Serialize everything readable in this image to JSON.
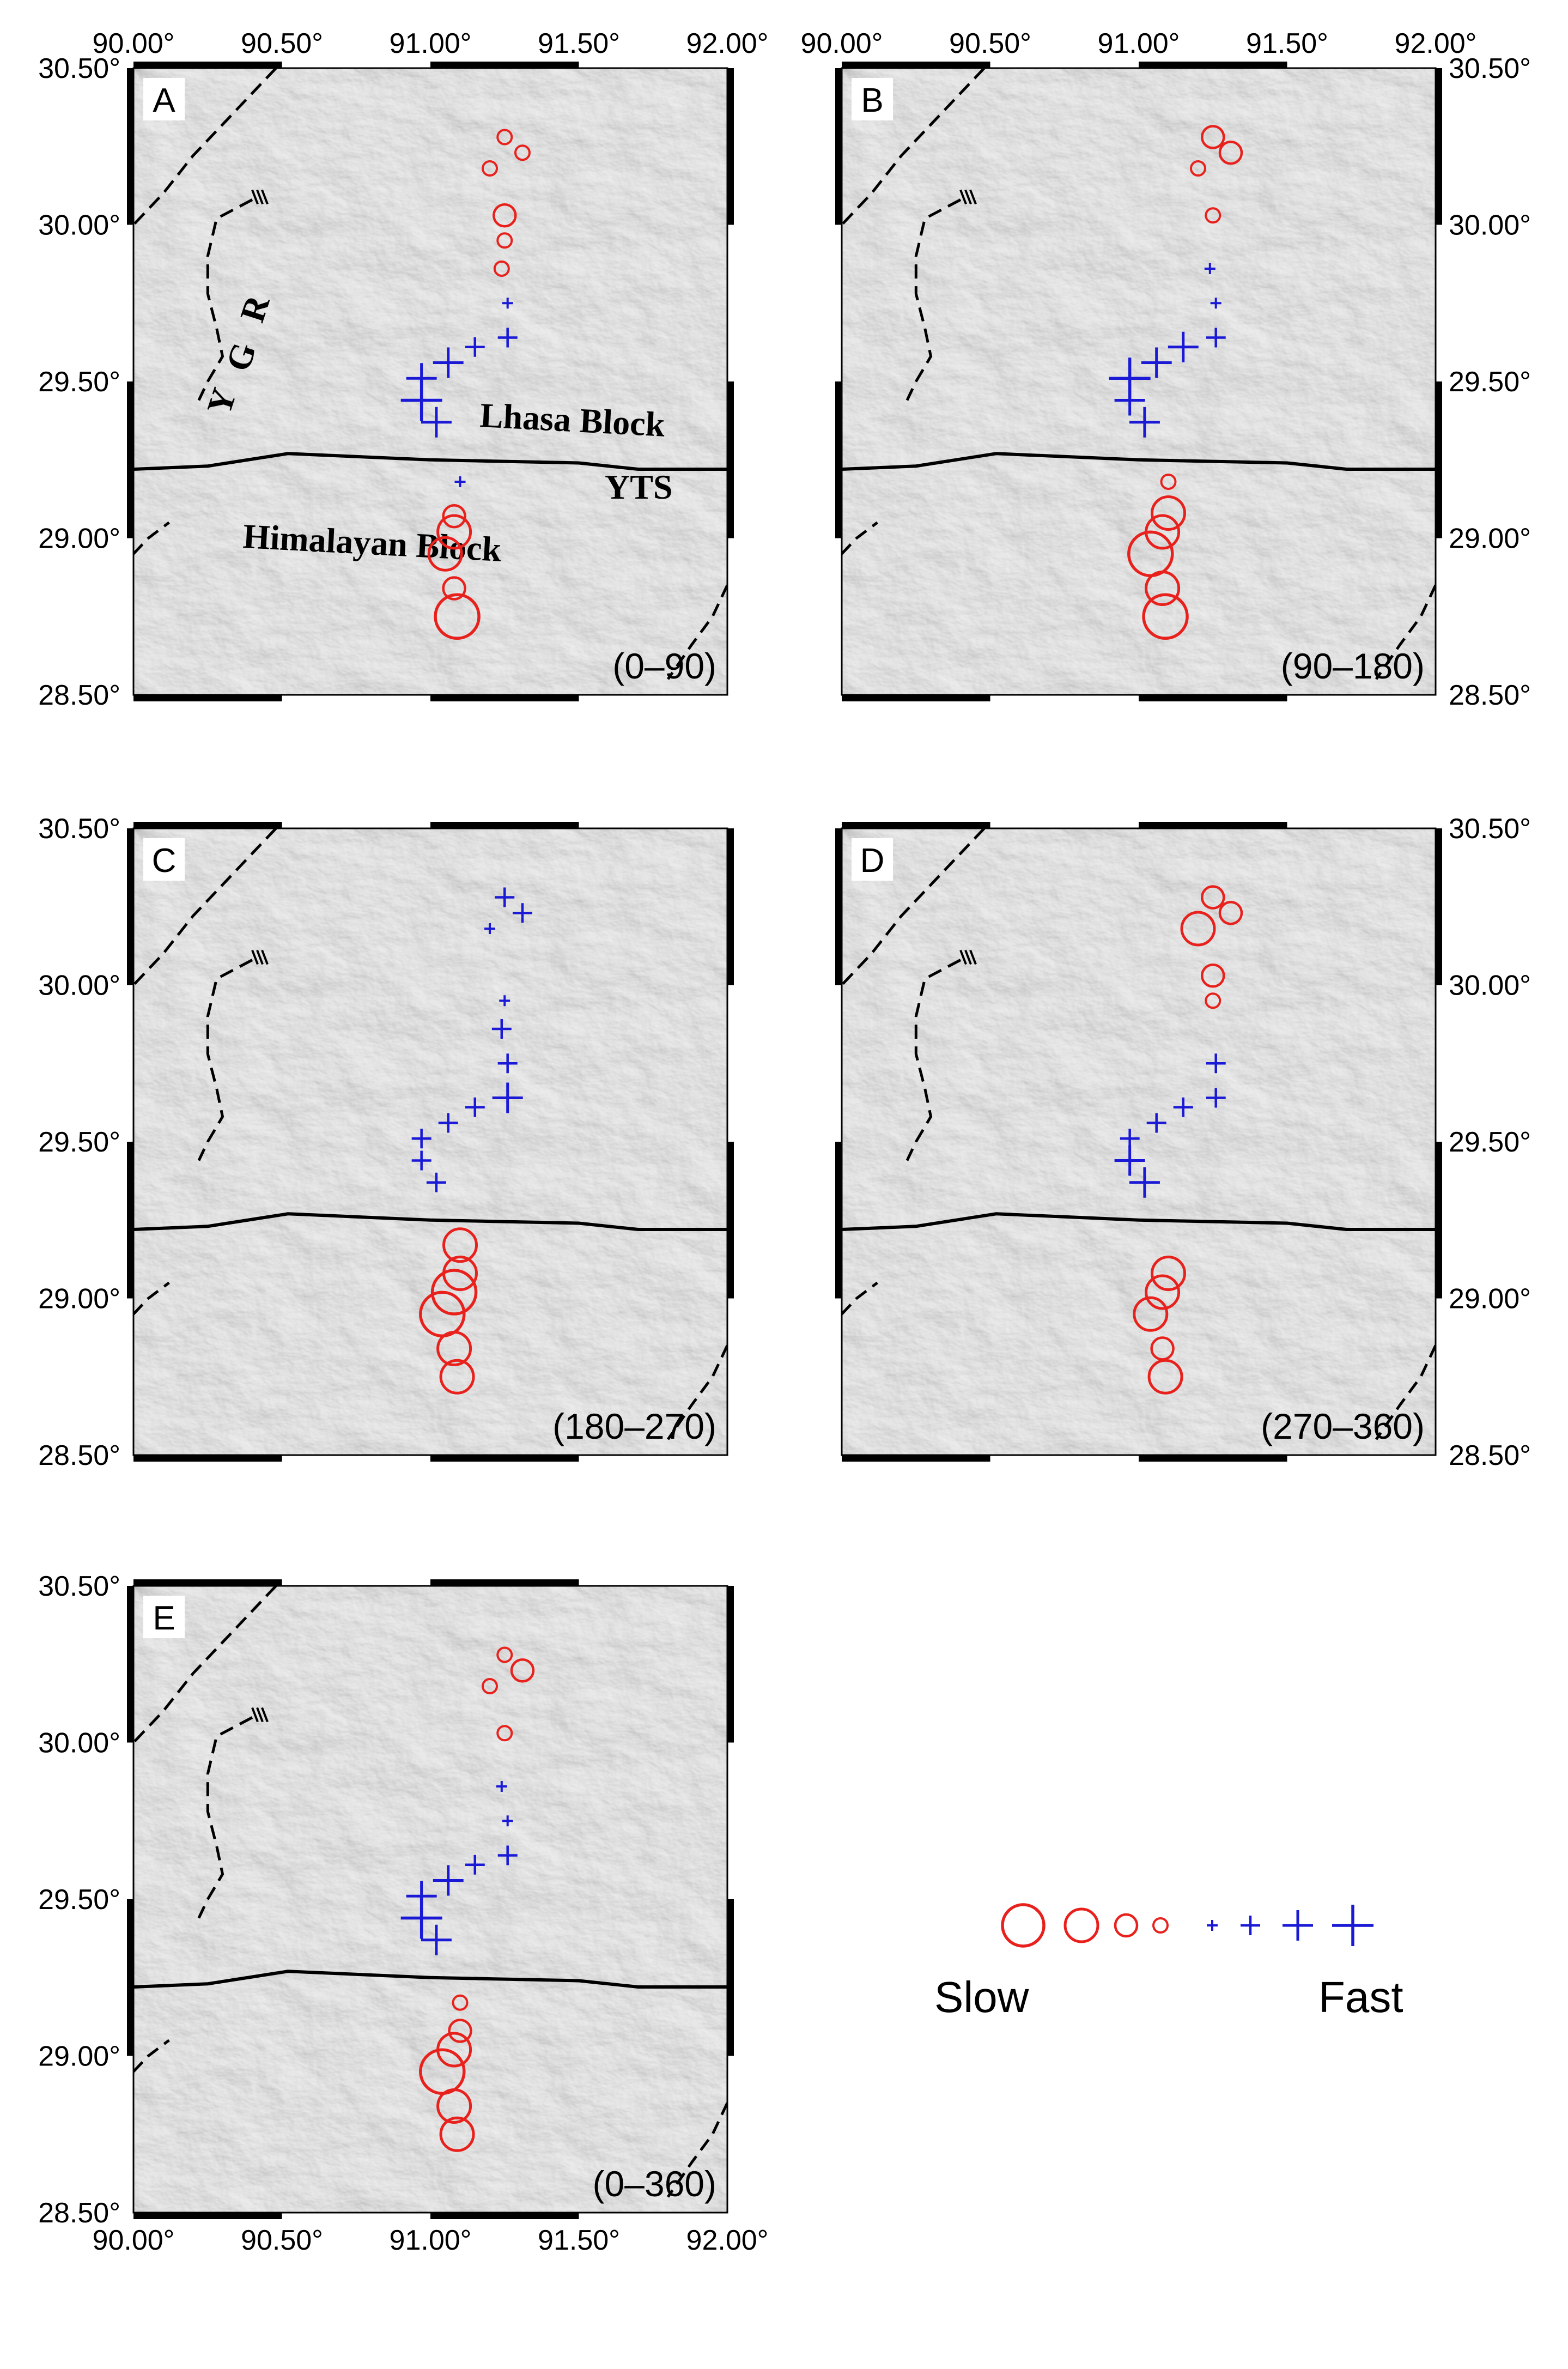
{
  "figure": {
    "x_ticks": [
      "90.00°",
      "90.50°",
      "91.00°",
      "91.50°",
      "92.00°"
    ],
    "y_ticks": [
      "30.50°",
      "30.00°",
      "29.50°",
      "29.00°",
      "28.50°"
    ],
    "lon_range": [
      90.0,
      92.0
    ],
    "lat_range": [
      28.5,
      30.5
    ],
    "colors": {
      "slow": "#e8211c",
      "fast": "#1a1ad6",
      "fault": "#000000",
      "terrain_base": "#d6d6d6"
    }
  },
  "labels": {
    "ygr_letters": [
      "Y",
      "G",
      "R"
    ],
    "lhasa_block": "Lhasa Block",
    "yts": "YTS",
    "himalayan_block": "Himalayan Block"
  },
  "panels": [
    {
      "letter": "A",
      "range": "(0–90)",
      "symbols": [
        {
          "lon": 91.25,
          "lat": 30.28,
          "t": "s",
          "m": 1
        },
        {
          "lon": 91.31,
          "lat": 30.23,
          "t": "s",
          "m": 1
        },
        {
          "lon": 91.2,
          "lat": 30.18,
          "t": "s",
          "m": 1
        },
        {
          "lon": 91.25,
          "lat": 30.03,
          "t": "s",
          "m": 2
        },
        {
          "lon": 91.25,
          "lat": 29.95,
          "t": "s",
          "m": 1
        },
        {
          "lon": 91.24,
          "lat": 29.86,
          "t": "s",
          "m": 1
        },
        {
          "lon": 91.26,
          "lat": 29.75,
          "t": "f",
          "m": 1
        },
        {
          "lon": 91.26,
          "lat": 29.64,
          "t": "f",
          "m": 2
        },
        {
          "lon": 91.15,
          "lat": 29.61,
          "t": "f",
          "m": 2
        },
        {
          "lon": 91.06,
          "lat": 29.56,
          "t": "f",
          "m": 3
        },
        {
          "lon": 90.97,
          "lat": 29.51,
          "t": "f",
          "m": 3
        },
        {
          "lon": 90.97,
          "lat": 29.44,
          "t": "f",
          "m": 4
        },
        {
          "lon": 91.02,
          "lat": 29.37,
          "t": "f",
          "m": 3
        },
        {
          "lon": 91.1,
          "lat": 29.18,
          "t": "f",
          "m": 1
        },
        {
          "lon": 91.08,
          "lat": 29.07,
          "t": "s",
          "m": 2
        },
        {
          "lon": 91.08,
          "lat": 29.02,
          "t": "s",
          "m": 3
        },
        {
          "lon": 91.05,
          "lat": 28.95,
          "t": "s",
          "m": 3
        },
        {
          "lon": 91.08,
          "lat": 28.84,
          "t": "s",
          "m": 2
        },
        {
          "lon": 91.09,
          "lat": 28.75,
          "t": "s",
          "m": 4
        }
      ]
    },
    {
      "letter": "B",
      "range": "(90–180)",
      "symbols": [
        {
          "lon": 91.25,
          "lat": 30.28,
          "t": "s",
          "m": 2
        },
        {
          "lon": 91.31,
          "lat": 30.23,
          "t": "s",
          "m": 2
        },
        {
          "lon": 91.2,
          "lat": 30.18,
          "t": "s",
          "m": 1
        },
        {
          "lon": 91.25,
          "lat": 30.03,
          "t": "s",
          "m": 1
        },
        {
          "lon": 91.24,
          "lat": 29.86,
          "t": "f",
          "m": 1
        },
        {
          "lon": 91.26,
          "lat": 29.75,
          "t": "f",
          "m": 1
        },
        {
          "lon": 91.26,
          "lat": 29.64,
          "t": "f",
          "m": 2
        },
        {
          "lon": 91.15,
          "lat": 29.61,
          "t": "f",
          "m": 3
        },
        {
          "lon": 91.06,
          "lat": 29.56,
          "t": "f",
          "m": 3
        },
        {
          "lon": 90.97,
          "lat": 29.51,
          "t": "f",
          "m": 4
        },
        {
          "lon": 90.97,
          "lat": 29.44,
          "t": "f",
          "m": 3
        },
        {
          "lon": 91.02,
          "lat": 29.37,
          "t": "f",
          "m": 3
        },
        {
          "lon": 91.1,
          "lat": 29.18,
          "t": "s",
          "m": 1
        },
        {
          "lon": 91.1,
          "lat": 29.08,
          "t": "s",
          "m": 3
        },
        {
          "lon": 91.08,
          "lat": 29.02,
          "t": "s",
          "m": 3
        },
        {
          "lon": 91.04,
          "lat": 28.95,
          "t": "s",
          "m": 4
        },
        {
          "lon": 91.08,
          "lat": 28.84,
          "t": "s",
          "m": 3
        },
        {
          "lon": 91.09,
          "lat": 28.75,
          "t": "s",
          "m": 4
        }
      ]
    },
    {
      "letter": "C",
      "range": "(180–270)",
      "symbols": [
        {
          "lon": 91.25,
          "lat": 30.28,
          "t": "f",
          "m": 2
        },
        {
          "lon": 91.31,
          "lat": 30.23,
          "t": "f",
          "m": 2
        },
        {
          "lon": 91.2,
          "lat": 30.18,
          "t": "f",
          "m": 1
        },
        {
          "lon": 91.25,
          "lat": 29.95,
          "t": "f",
          "m": 1
        },
        {
          "lon": 91.24,
          "lat": 29.86,
          "t": "f",
          "m": 2
        },
        {
          "lon": 91.26,
          "lat": 29.75,
          "t": "f",
          "m": 2
        },
        {
          "lon": 91.26,
          "lat": 29.64,
          "t": "f",
          "m": 3
        },
        {
          "lon": 91.15,
          "lat": 29.61,
          "t": "f",
          "m": 2
        },
        {
          "lon": 91.06,
          "lat": 29.56,
          "t": "f",
          "m": 2
        },
        {
          "lon": 90.97,
          "lat": 29.51,
          "t": "f",
          "m": 2
        },
        {
          "lon": 90.97,
          "lat": 29.44,
          "t": "f",
          "m": 2
        },
        {
          "lon": 91.02,
          "lat": 29.37,
          "t": "f",
          "m": 2
        },
        {
          "lon": 91.1,
          "lat": 29.17,
          "t": "s",
          "m": 3
        },
        {
          "lon": 91.1,
          "lat": 29.08,
          "t": "s",
          "m": 3
        },
        {
          "lon": 91.08,
          "lat": 29.02,
          "t": "s",
          "m": 4
        },
        {
          "lon": 91.04,
          "lat": 28.95,
          "t": "s",
          "m": 4
        },
        {
          "lon": 91.08,
          "lat": 28.84,
          "t": "s",
          "m": 3
        },
        {
          "lon": 91.09,
          "lat": 28.75,
          "t": "s",
          "m": 3
        }
      ]
    },
    {
      "letter": "D",
      "range": "(270–360)",
      "symbols": [
        {
          "lon": 91.25,
          "lat": 30.28,
          "t": "s",
          "m": 2
        },
        {
          "lon": 91.31,
          "lat": 30.23,
          "t": "s",
          "m": 2
        },
        {
          "lon": 91.2,
          "lat": 30.18,
          "t": "s",
          "m": 3
        },
        {
          "lon": 91.25,
          "lat": 30.03,
          "t": "s",
          "m": 2
        },
        {
          "lon": 91.25,
          "lat": 29.95,
          "t": "s",
          "m": 1
        },
        {
          "lon": 91.26,
          "lat": 29.75,
          "t": "f",
          "m": 2
        },
        {
          "lon": 91.26,
          "lat": 29.64,
          "t": "f",
          "m": 2
        },
        {
          "lon": 91.15,
          "lat": 29.61,
          "t": "f",
          "m": 2
        },
        {
          "lon": 91.06,
          "lat": 29.56,
          "t": "f",
          "m": 2
        },
        {
          "lon": 90.97,
          "lat": 29.51,
          "t": "f",
          "m": 2
        },
        {
          "lon": 90.97,
          "lat": 29.44,
          "t": "f",
          "m": 3
        },
        {
          "lon": 91.02,
          "lat": 29.37,
          "t": "f",
          "m": 3
        },
        {
          "lon": 91.1,
          "lat": 29.08,
          "t": "s",
          "m": 3
        },
        {
          "lon": 91.08,
          "lat": 29.02,
          "t": "s",
          "m": 3
        },
        {
          "lon": 91.04,
          "lat": 28.95,
          "t": "s",
          "m": 3
        },
        {
          "lon": 91.08,
          "lat": 28.84,
          "t": "s",
          "m": 2
        },
        {
          "lon": 91.09,
          "lat": 28.75,
          "t": "s",
          "m": 3
        }
      ]
    },
    {
      "letter": "E",
      "range": "(0–360)",
      "symbols": [
        {
          "lon": 91.25,
          "lat": 30.28,
          "t": "s",
          "m": 1
        },
        {
          "lon": 91.31,
          "lat": 30.23,
          "t": "s",
          "m": 2
        },
        {
          "lon": 91.2,
          "lat": 30.18,
          "t": "s",
          "m": 1
        },
        {
          "lon": 91.25,
          "lat": 30.03,
          "t": "s",
          "m": 1
        },
        {
          "lon": 91.24,
          "lat": 29.86,
          "t": "f",
          "m": 1
        },
        {
          "lon": 91.26,
          "lat": 29.75,
          "t": "f",
          "m": 1
        },
        {
          "lon": 91.26,
          "lat": 29.64,
          "t": "f",
          "m": 2
        },
        {
          "lon": 91.15,
          "lat": 29.61,
          "t": "f",
          "m": 2
        },
        {
          "lon": 91.06,
          "lat": 29.56,
          "t": "f",
          "m": 3
        },
        {
          "lon": 90.97,
          "lat": 29.51,
          "t": "f",
          "m": 3
        },
        {
          "lon": 90.97,
          "lat": 29.44,
          "t": "f",
          "m": 4
        },
        {
          "lon": 91.02,
          "lat": 29.37,
          "t": "f",
          "m": 3
        },
        {
          "lon": 91.1,
          "lat": 29.17,
          "t": "s",
          "m": 1
        },
        {
          "lon": 91.1,
          "lat": 29.08,
          "t": "s",
          "m": 2
        },
        {
          "lon": 91.08,
          "lat": 29.02,
          "t": "s",
          "m": 3
        },
        {
          "lon": 91.04,
          "lat": 28.95,
          "t": "s",
          "m": 4
        },
        {
          "lon": 91.08,
          "lat": 28.84,
          "t": "s",
          "m": 3
        },
        {
          "lon": 91.09,
          "lat": 28.75,
          "t": "s",
          "m": 3
        }
      ]
    }
  ],
  "legend": {
    "slow_label": "Slow",
    "fast_label": "Fast",
    "items": [
      {
        "t": "s",
        "m": 4
      },
      {
        "t": "s",
        "m": 3
      },
      {
        "t": "s",
        "m": 2
      },
      {
        "t": "s",
        "m": 1
      },
      {
        "t": "f",
        "m": 1
      },
      {
        "t": "f",
        "m": 2
      },
      {
        "t": "f",
        "m": 3
      },
      {
        "t": "f",
        "m": 4
      }
    ]
  }
}
